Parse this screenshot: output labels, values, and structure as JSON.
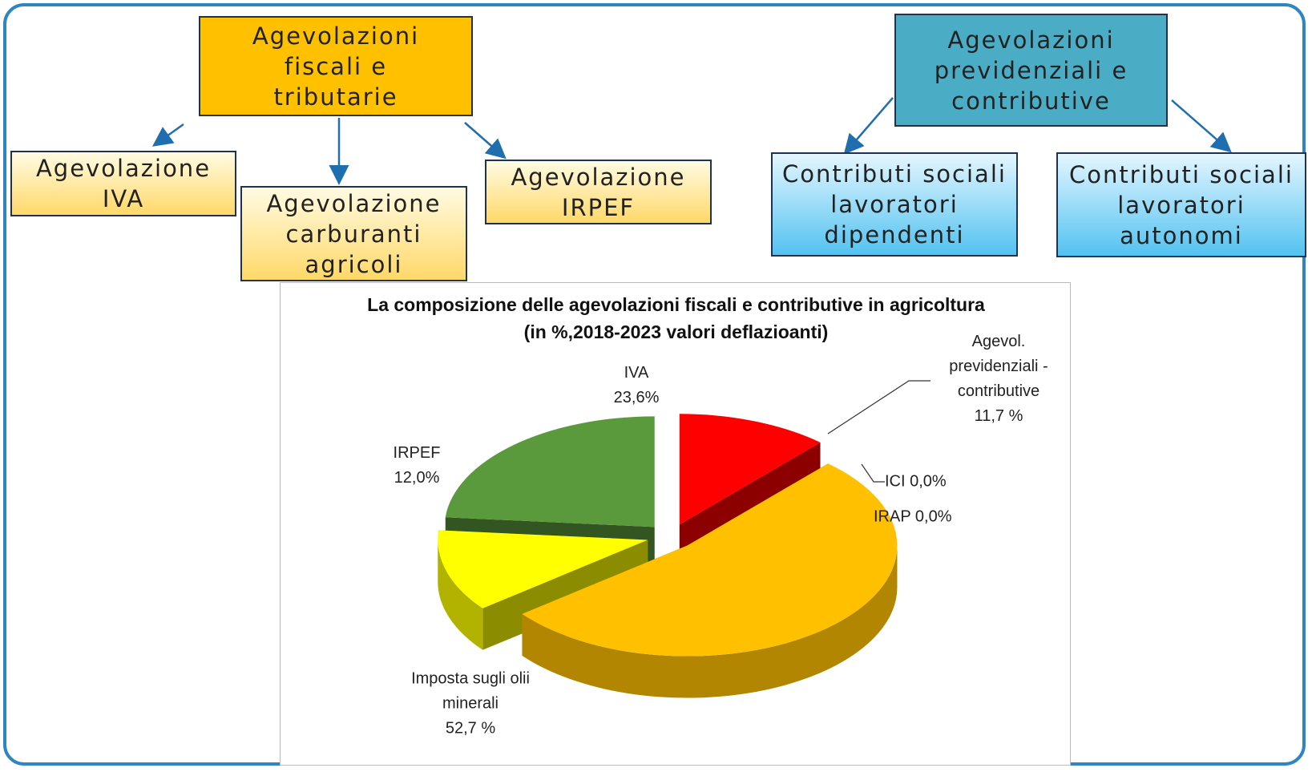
{
  "diagram": {
    "nodes": [
      {
        "label": "Agevolazioni fiscali e tributarie"
      },
      {
        "label": "Agevolazione IVA"
      },
      {
        "label": "Agevolazione carburanti agricoli"
      },
      {
        "label": "Agevolazione IRPEF"
      },
      {
        "label": "Agevolazioni previdenziali e contributive"
      },
      {
        "label": "Contributi sociali lavoratori dipendenti"
      },
      {
        "label": "Contributi sociali lavoratori autonomi"
      }
    ]
  },
  "chart_data": {
    "type": "pie",
    "title": "La composizione delle agevolazioni fiscali e contributive in agricoltura (in %,2018-2023 valori deflazioanti)",
    "categories": [
      "Agevol. previdenziali - contributive",
      "ICI",
      "IRAP",
      "Imposta sugli olii minerali",
      "IRPEF",
      "IVA"
    ],
    "values": [
      11.7,
      0.0,
      0.0,
      52.7,
      12.0,
      23.6
    ],
    "value_labels": [
      "11,7 %",
      "0,0%",
      "0,0%",
      "52,7 %",
      "12,0%",
      "23,6%"
    ],
    "colors": [
      "#ff0000",
      "#595959",
      "#8b4513",
      "#ffc000",
      "#ffff00",
      "#5b9a3c"
    ]
  }
}
